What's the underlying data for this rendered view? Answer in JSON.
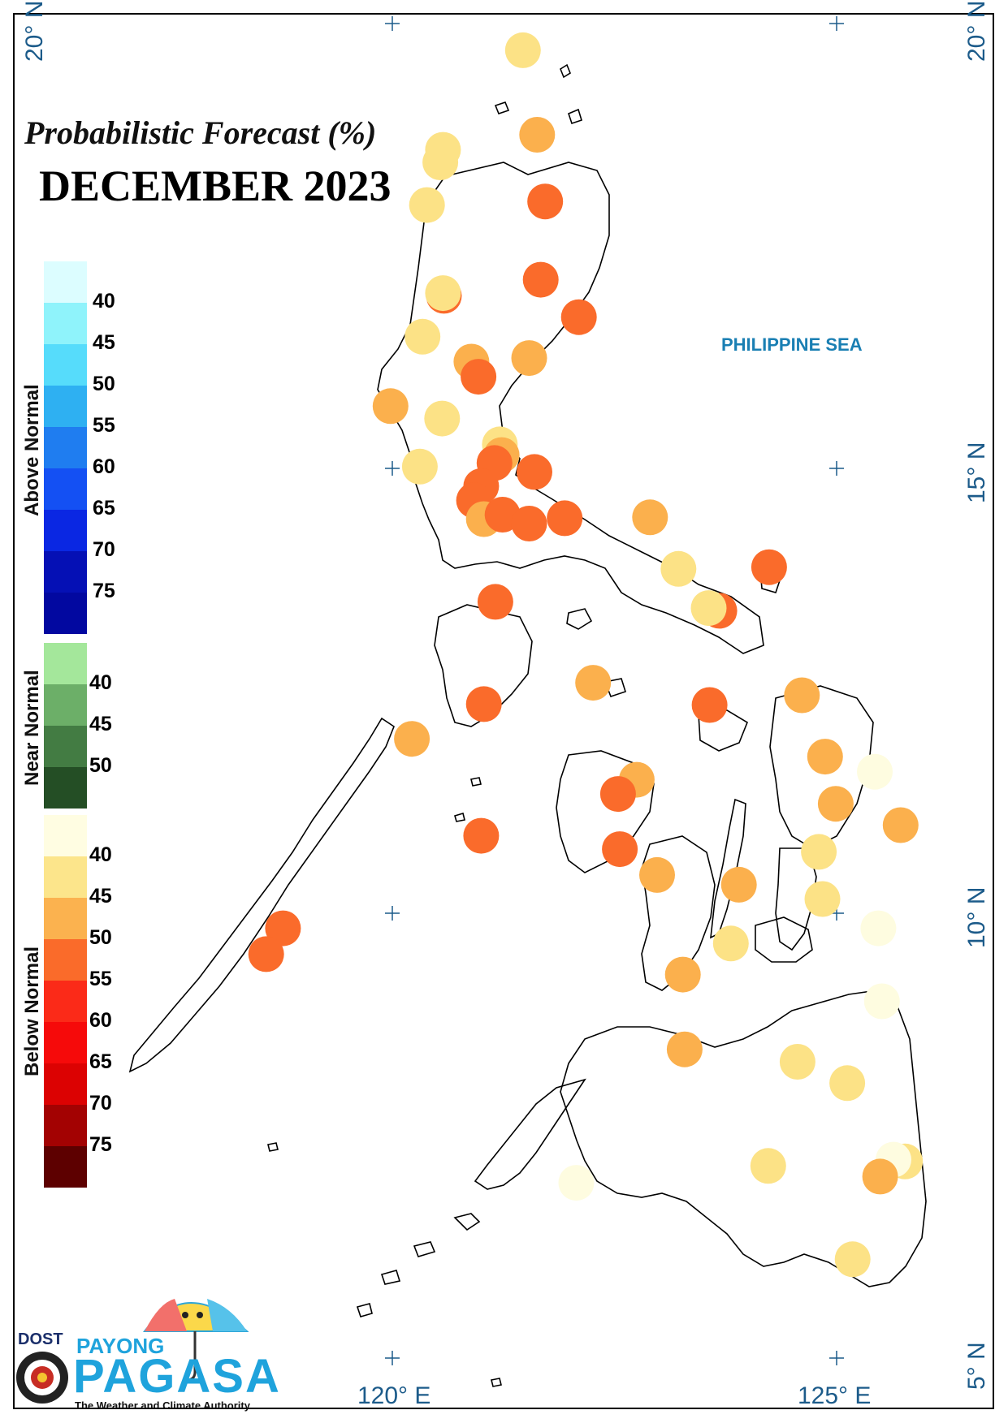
{
  "title": "Probabilistic Forecast (%)",
  "period": "DECEMBER 2023",
  "sea_label": "PHILIPPINE SEA",
  "axes": {
    "lat_top_left": "20° N",
    "lat_top_right": "20° N",
    "lat_15": "15° N",
    "lat_10": "10° N",
    "lat_5": "5° N",
    "lon_120": "120° E",
    "lon_125": "125° E"
  },
  "legend": {
    "groups": [
      {
        "name": "Above Normal",
        "labels": [
          "40",
          "45",
          "50",
          "55",
          "60",
          "65",
          "70",
          "75"
        ],
        "colors": [
          "#dcfdff",
          "#8ff3fb",
          "#56dcfb",
          "#2eb0f2",
          "#1f7df0",
          "#1450f3",
          "#0a27e3",
          "#0510b5",
          "#0208a0"
        ]
      },
      {
        "name": "Near Normal",
        "labels": [
          "40",
          "45",
          "50"
        ],
        "colors": [
          "#a4e79b",
          "#6caf68",
          "#437c43",
          "#244e25"
        ]
      },
      {
        "name": "Below Normal",
        "labels": [
          "40",
          "45",
          "50",
          "55",
          "60",
          "65",
          "70",
          "75"
        ],
        "colors": [
          "#fffde2",
          "#fce58b",
          "#fbb24f",
          "#fa6b2a",
          "#fb2a18",
          "#f60a0a",
          "#dc0202",
          "#a30202",
          "#5d0000"
        ]
      }
    ]
  },
  "station_classes": {
    "below_40": "#fefce0",
    "below_40_45": "#fce286",
    "below_45_50": "#fbb04d",
    "below_50_55": "#fa6b2b"
  },
  "stations": [
    {
      "lat": 19.7,
      "lon": 121.47,
      "cls": "below_40_45"
    },
    {
      "lat": 18.75,
      "lon": 121.63,
      "cls": "below_45_50"
    },
    {
      "lat": 18.58,
      "lon": 120.57,
      "cls": "below_40_45"
    },
    {
      "lat": 18.44,
      "lon": 120.54,
      "cls": "below_40_45"
    },
    {
      "lat": 18.0,
      "lon": 121.72,
      "cls": "below_50_55"
    },
    {
      "lat": 17.96,
      "lon": 120.39,
      "cls": "below_40_45"
    },
    {
      "lat": 17.12,
      "lon": 121.67,
      "cls": "below_50_55"
    },
    {
      "lat": 16.94,
      "lon": 120.58,
      "cls": "below_50_55"
    },
    {
      "lat": 16.97,
      "lon": 120.57,
      "cls": "below_40_45"
    },
    {
      "lat": 16.7,
      "lon": 122.1,
      "cls": "below_50_55"
    },
    {
      "lat": 16.48,
      "lon": 120.34,
      "cls": "below_40_45"
    },
    {
      "lat": 16.2,
      "lon": 120.89,
      "cls": "below_45_50"
    },
    {
      "lat": 16.24,
      "lon": 121.54,
      "cls": "below_45_50"
    },
    {
      "lat": 16.03,
      "lon": 120.97,
      "cls": "below_50_55"
    },
    {
      "lat": 15.7,
      "lon": 119.98,
      "cls": "below_45_50"
    },
    {
      "lat": 15.56,
      "lon": 120.56,
      "cls": "below_40_45"
    },
    {
      "lat": 15.27,
      "lon": 121.21,
      "cls": "below_40_45"
    },
    {
      "lat": 15.15,
      "lon": 121.23,
      "cls": "below_45_50"
    },
    {
      "lat": 15.06,
      "lon": 121.15,
      "cls": "below_50_55"
    },
    {
      "lat": 15.02,
      "lon": 120.31,
      "cls": "below_40_45"
    },
    {
      "lat": 14.96,
      "lon": 121.6,
      "cls": "below_50_55"
    },
    {
      "lat": 14.8,
      "lon": 121.0,
      "cls": "below_50_55"
    },
    {
      "lat": 14.64,
      "lon": 120.92,
      "cls": "below_50_55"
    },
    {
      "lat": 14.43,
      "lon": 121.03,
      "cls": "below_45_50"
    },
    {
      "lat": 14.48,
      "lon": 121.24,
      "cls": "below_50_55"
    },
    {
      "lat": 14.38,
      "lon": 121.54,
      "cls": "below_50_55"
    },
    {
      "lat": 14.44,
      "lon": 121.94,
      "cls": "below_50_55"
    },
    {
      "lat": 14.45,
      "lon": 122.9,
      "cls": "below_45_50"
    },
    {
      "lat": 13.89,
      "lon": 124.24,
      "cls": "below_50_55"
    },
    {
      "lat": 13.87,
      "lon": 123.22,
      "cls": "below_40_45"
    },
    {
      "lat": 13.4,
      "lon": 123.68,
      "cls": "below_50_55"
    },
    {
      "lat": 13.43,
      "lon": 123.56,
      "cls": "below_40_45"
    },
    {
      "lat": 13.5,
      "lon": 121.16,
      "cls": "below_50_55"
    },
    {
      "lat": 12.59,
      "lon": 122.26,
      "cls": "below_45_50"
    },
    {
      "lat": 12.45,
      "lon": 124.61,
      "cls": "below_45_50"
    },
    {
      "lat": 12.34,
      "lon": 123.57,
      "cls": "below_50_55"
    },
    {
      "lat": 12.35,
      "lon": 121.03,
      "cls": "below_50_55"
    },
    {
      "lat": 11.96,
      "lon": 120.22,
      "cls": "below_45_50"
    },
    {
      "lat": 11.76,
      "lon": 124.87,
      "cls": "below_45_50"
    },
    {
      "lat": 11.59,
      "lon": 125.43,
      "cls": "below_40"
    },
    {
      "lat": 11.5,
      "lon": 122.75,
      "cls": "below_45_50"
    },
    {
      "lat": 11.34,
      "lon": 122.54,
      "cls": "below_50_55"
    },
    {
      "lat": 11.23,
      "lon": 124.99,
      "cls": "below_45_50"
    },
    {
      "lat": 10.99,
      "lon": 125.72,
      "cls": "below_45_50"
    },
    {
      "lat": 10.87,
      "lon": 121.0,
      "cls": "below_50_55"
    },
    {
      "lat": 10.72,
      "lon": 122.56,
      "cls": "below_50_55"
    },
    {
      "lat": 10.69,
      "lon": 124.8,
      "cls": "below_40_45"
    },
    {
      "lat": 10.43,
      "lon": 122.98,
      "cls": "below_45_50"
    },
    {
      "lat": 10.32,
      "lon": 123.9,
      "cls": "below_45_50"
    },
    {
      "lat": 10.16,
      "lon": 124.84,
      "cls": "below_40_45"
    },
    {
      "lat": 9.83,
      "lon": 118.77,
      "cls": "below_50_55"
    },
    {
      "lat": 9.83,
      "lon": 125.47,
      "cls": "below_40"
    },
    {
      "lat": 9.66,
      "lon": 123.81,
      "cls": "below_40_45"
    },
    {
      "lat": 9.54,
      "lon": 118.58,
      "cls": "below_50_55"
    },
    {
      "lat": 9.31,
      "lon": 123.27,
      "cls": "below_45_50"
    },
    {
      "lat": 9.01,
      "lon": 125.51,
      "cls": "below_40"
    },
    {
      "lat": 8.47,
      "lon": 123.29,
      "cls": "below_45_50"
    },
    {
      "lat": 8.33,
      "lon": 124.56,
      "cls": "below_40_45"
    },
    {
      "lat": 8.09,
      "lon": 125.12,
      "cls": "below_40_45"
    },
    {
      "lat": 7.21,
      "lon": 125.77,
      "cls": "below_40_45"
    },
    {
      "lat": 7.23,
      "lon": 125.64,
      "cls": "below_40"
    },
    {
      "lat": 7.16,
      "lon": 124.23,
      "cls": "below_40_45"
    },
    {
      "lat": 7.04,
      "lon": 125.49,
      "cls": "below_45_50"
    },
    {
      "lat": 6.97,
      "lon": 122.07,
      "cls": "below_40"
    },
    {
      "lat": 6.11,
      "lon": 125.18,
      "cls": "below_40_45"
    }
  ],
  "logo": {
    "dost": "DOST",
    "payong": "PAYONG",
    "pagasa": "PAGASA",
    "tagline": "The Weather and Climate Authority"
  }
}
